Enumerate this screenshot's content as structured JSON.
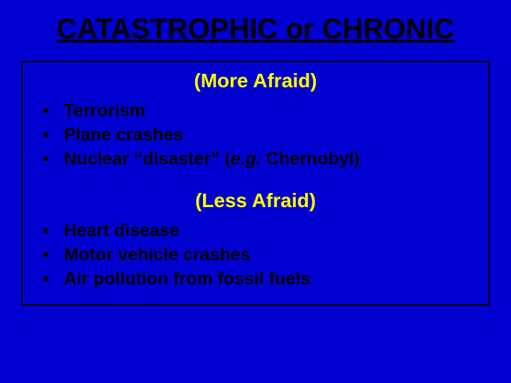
{
  "slide": {
    "background_color": "#0000d0",
    "title": "CATASTROPHIC or CHRONIC",
    "title_color": "#000000",
    "title_fontsize": 40,
    "border_color": "#000000",
    "section1": {
      "header": "(More Afraid)",
      "header_color": "#ffff00",
      "header_fontsize": 28,
      "items": [
        "Terrorism",
        "Plane crashes",
        "Nuclear “disaster” (e.g. Chernobyl)"
      ]
    },
    "section2": {
      "header": "(Less Afraid)",
      "header_color": "#ffff00",
      "header_fontsize": 28,
      "items": [
        "Heart disease",
        "Motor vehicle crashes",
        "Air pollution from fossil fuels"
      ]
    },
    "bullet_color": "#000000",
    "bullet_fontsize": 25
  }
}
